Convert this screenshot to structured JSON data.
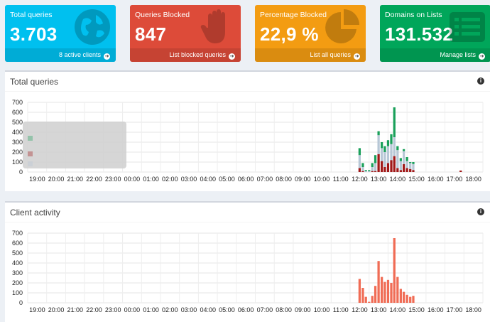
{
  "tiles": [
    {
      "title": "Total queries",
      "value": "3.703",
      "link": "8 active clients",
      "color": "#00c0ef",
      "icon": "globe-icon"
    },
    {
      "title": "Queries Blocked",
      "value": "847",
      "link": "List blocked queries",
      "color": "#dd4b39",
      "icon": "hand-icon"
    },
    {
      "title": "Percentage Blocked",
      "value": "22,9 %",
      "link": "List all queries",
      "color": "#f39c12",
      "icon": "pie-chart-icon"
    },
    {
      "title": "Domains on Lists",
      "value": "131.532",
      "link": "Manage lists",
      "color": "#00a65a",
      "icon": "list-icon"
    }
  ],
  "panels": {
    "queries": {
      "title": "Total queries"
    },
    "clients": {
      "title": "Client activity"
    }
  },
  "chart_data": [
    {
      "type": "bar",
      "stacked": true,
      "title": "Total queries",
      "ylim": [
        0,
        700
      ],
      "yticks": [
        0,
        100,
        200,
        300,
        400,
        500,
        600,
        700
      ],
      "x_labels": [
        "19:00",
        "20:00",
        "21:00",
        "22:00",
        "23:00",
        "00:00",
        "01:00",
        "02:00",
        "03:00",
        "04:00",
        "05:00",
        "06:00",
        "07:00",
        "08:00",
        "09:00",
        "10:00",
        "11:00",
        "12:00",
        "13:00",
        "14:00",
        "15:00",
        "16:00",
        "17:00",
        "18:00"
      ],
      "grid": true,
      "legend": "top-left (faded tooltip)",
      "x": [
        12.0,
        12.17,
        12.33,
        12.5,
        12.67,
        12.83,
        13.0,
        13.17,
        13.33,
        13.5,
        13.67,
        13.83,
        14.0,
        14.17,
        14.33,
        14.5,
        14.67,
        14.83,
        17.33
      ],
      "series": [
        {
          "color": "#a01818",
          "values": [
            40,
            10,
            0,
            0,
            10,
            10,
            180,
            110,
            50,
            90,
            120,
            160,
            40,
            20,
            80,
            40,
            30,
            20,
            15
          ]
        },
        {
          "color": "#b7c7d6",
          "values": [
            130,
            40,
            10,
            10,
            40,
            80,
            190,
            130,
            150,
            170,
            160,
            190,
            180,
            90,
            130,
            70,
            60,
            60,
            0
          ]
        },
        {
          "color": "#1aa05a",
          "values": [
            70,
            40,
            10,
            10,
            40,
            80,
            40,
            60,
            60,
            60,
            100,
            300,
            40,
            30,
            20,
            40,
            10,
            20,
            0
          ]
        }
      ]
    },
    {
      "type": "bar",
      "title": "Client activity",
      "ylim": [
        0,
        700
      ],
      "yticks": [
        0,
        100,
        200,
        300,
        400,
        500,
        600,
        700
      ],
      "x_labels": [
        "19:00",
        "20:00",
        "21:00",
        "22:00",
        "23:00",
        "00:00",
        "01:00",
        "02:00",
        "03:00",
        "04:00",
        "05:00",
        "06:00",
        "07:00",
        "08:00",
        "09:00",
        "10:00",
        "11:00",
        "12:00",
        "13:00",
        "14:00",
        "15:00",
        "16:00",
        "17:00",
        "18:00"
      ],
      "grid": true,
      "x": [
        12.0,
        12.17,
        12.33,
        12.5,
        12.67,
        12.83,
        13.0,
        13.17,
        13.33,
        13.5,
        13.67,
        13.83,
        14.0,
        14.17,
        14.33,
        14.5,
        14.67,
        14.83
      ],
      "series": [
        {
          "color": "#f06c55",
          "values": [
            240,
            150,
            60,
            10,
            70,
            170,
            420,
            260,
            210,
            230,
            200,
            650,
            260,
            140,
            110,
            80,
            60,
            70
          ]
        }
      ]
    }
  ]
}
